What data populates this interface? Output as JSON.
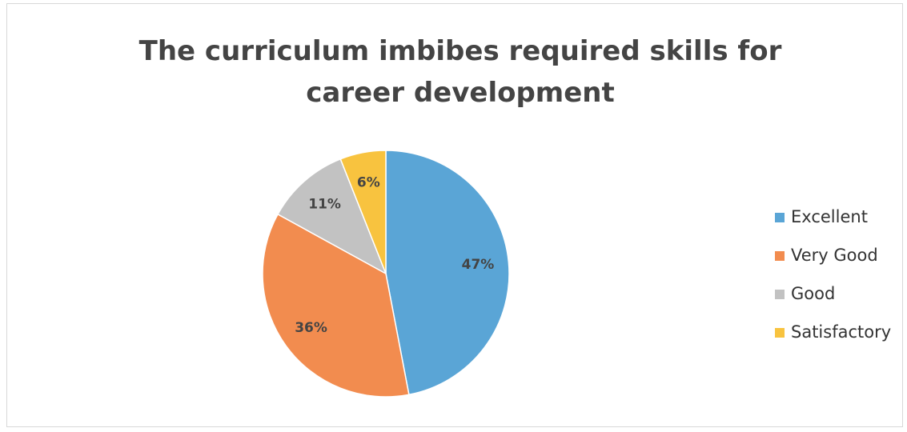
{
  "chart_data": {
    "type": "pie",
    "title": "The curriculum imbibes required skills for career development",
    "categories": [
      "Excellent",
      "Very Good",
      "Good",
      "Satisfactory"
    ],
    "values": [
      47,
      36,
      11,
      6
    ],
    "value_labels": [
      "47%",
      "36%",
      "11%",
      "6%"
    ],
    "colors": [
      "#5aa5d6",
      "#f28c4f",
      "#c2c2c2",
      "#f8c33f"
    ],
    "legend": "right"
  }
}
